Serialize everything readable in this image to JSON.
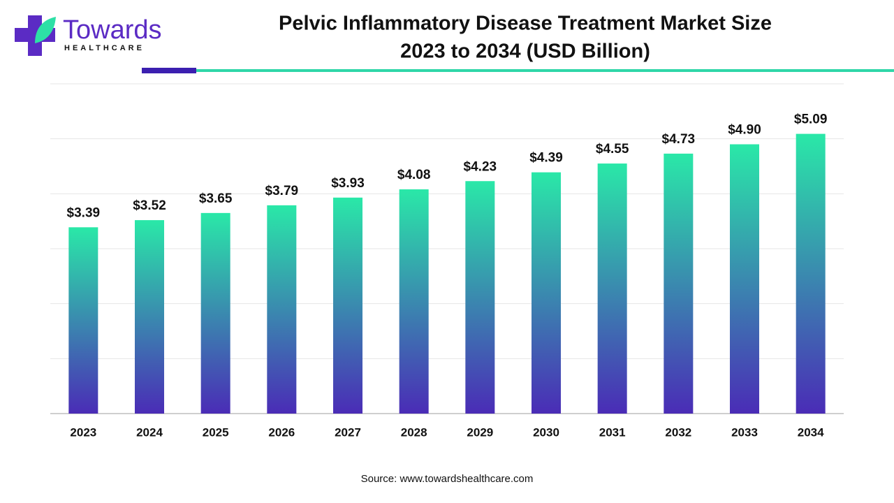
{
  "logo": {
    "name": "Towards",
    "tagline": "HEALTHCARE"
  },
  "chart_data": {
    "type": "bar",
    "title": [
      "Pelvic Inflammatory Disease Treatment Market Size",
      "2023 to 2034 (USD Billion)"
    ],
    "categories": [
      "2023",
      "2024",
      "2025",
      "2026",
      "2027",
      "2028",
      "2029",
      "2030",
      "2031",
      "2032",
      "2033",
      "2034"
    ],
    "values": [
      3.39,
      3.52,
      3.65,
      3.79,
      3.93,
      4.08,
      4.23,
      4.39,
      4.55,
      4.73,
      4.9,
      5.09
    ],
    "value_labels": [
      "$3.39",
      "$3.52",
      "$3.65",
      "$3.79",
      "$3.93",
      "$4.08",
      "$4.23",
      "$4.39",
      "$4.55",
      "$4.73",
      "$4.90",
      "$5.09"
    ],
    "gradient": {
      "top": "#2ae8a8",
      "bottom": "#4a2cb6"
    },
    "ylim": [
      0,
      6
    ],
    "yticks": [
      0,
      1,
      2,
      3,
      4,
      5,
      6
    ],
    "grid": true,
    "source": "Source: www.towardshealthcare.com"
  }
}
